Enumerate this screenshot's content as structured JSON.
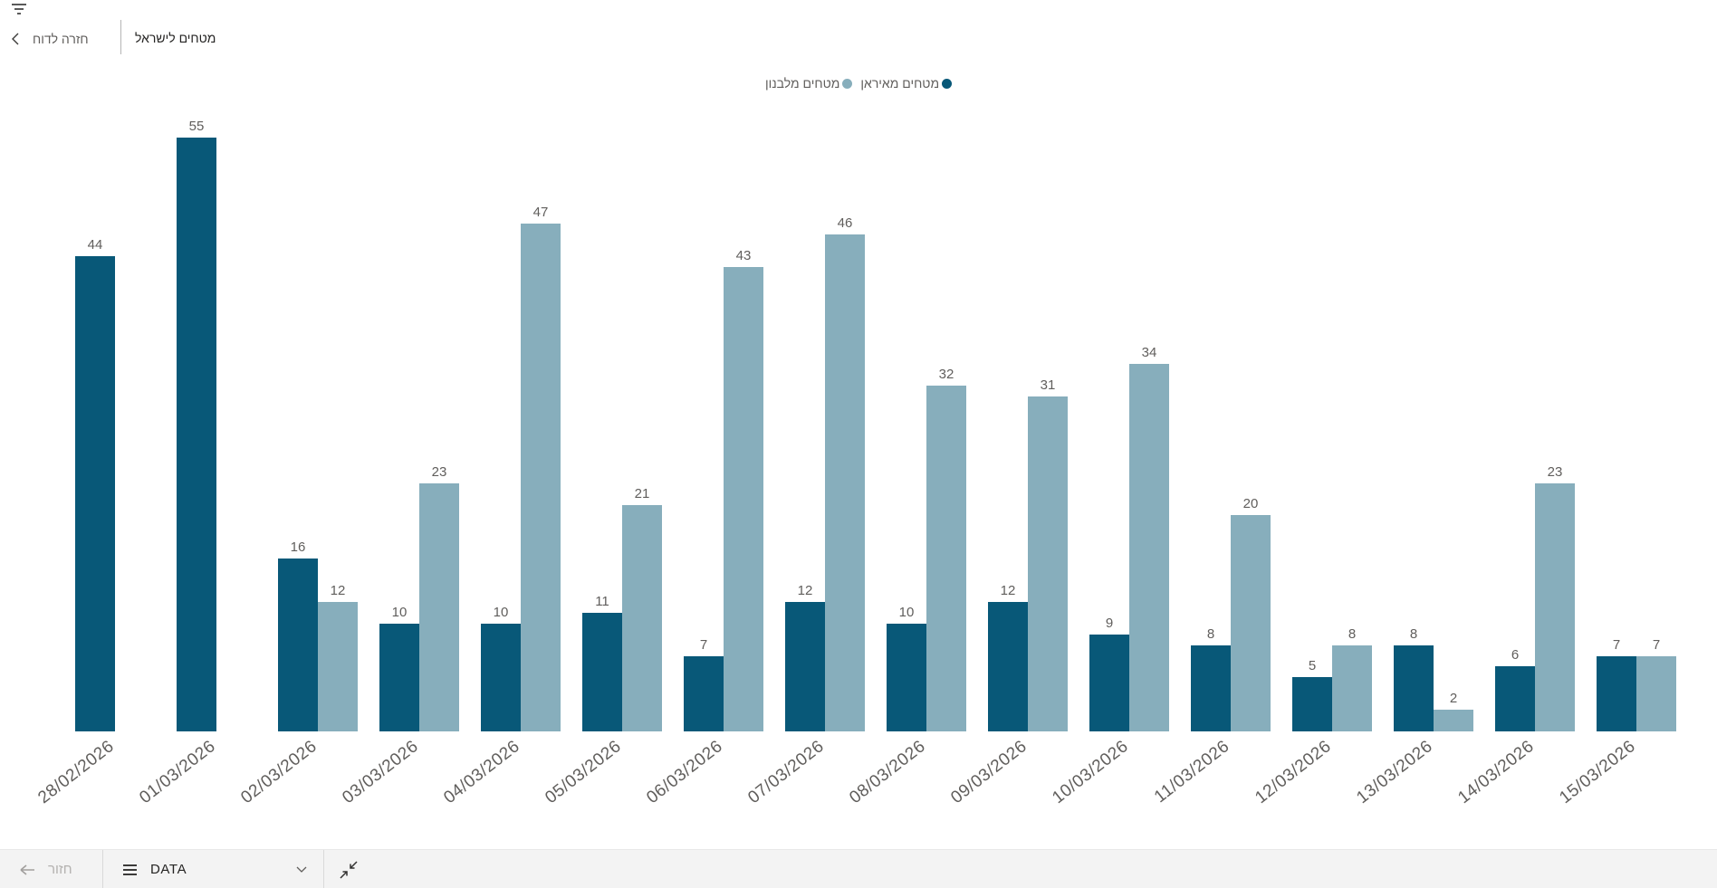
{
  "header": {
    "back_label": "חזרה לדוח",
    "title": "מטחים לישראל"
  },
  "chart_data": {
    "type": "bar",
    "title": "מטחים לישראל",
    "categories": [
      "28/02/2026",
      "01/03/2026",
      "02/03/2026",
      "03/03/2026",
      "04/03/2026",
      "05/03/2026",
      "06/03/2026",
      "07/03/2026",
      "08/03/2026",
      "09/03/2026",
      "10/03/2026",
      "11/03/2026",
      "12/03/2026",
      "13/03/2026",
      "14/03/2026",
      "15/03/2026"
    ],
    "series": [
      {
        "name": "מטחים מאיראן",
        "color": "#085878",
        "values": [
          44,
          55,
          16,
          10,
          10,
          11,
          7,
          12,
          10,
          12,
          9,
          8,
          5,
          8,
          6,
          7
        ]
      },
      {
        "name": "מטחים מלבנון",
        "color": "#87aebc",
        "values": [
          null,
          null,
          12,
          23,
          47,
          21,
          43,
          46,
          32,
          31,
          34,
          20,
          8,
          2,
          23,
          7
        ]
      }
    ],
    "ylim": [
      0,
      55
    ],
    "grid": false,
    "data_labels": true,
    "legend_position": "top-center",
    "x_label_rotation_deg": -38
  },
  "footer": {
    "back_label": "חזור",
    "data_selector_label": "DATA"
  },
  "colors": {
    "bar_iran": "#085878",
    "bar_lebanon": "#87aebc",
    "value_label": "#605e5c",
    "axis_label": "#605e5c",
    "footer_bg": "#f3f3f3"
  }
}
